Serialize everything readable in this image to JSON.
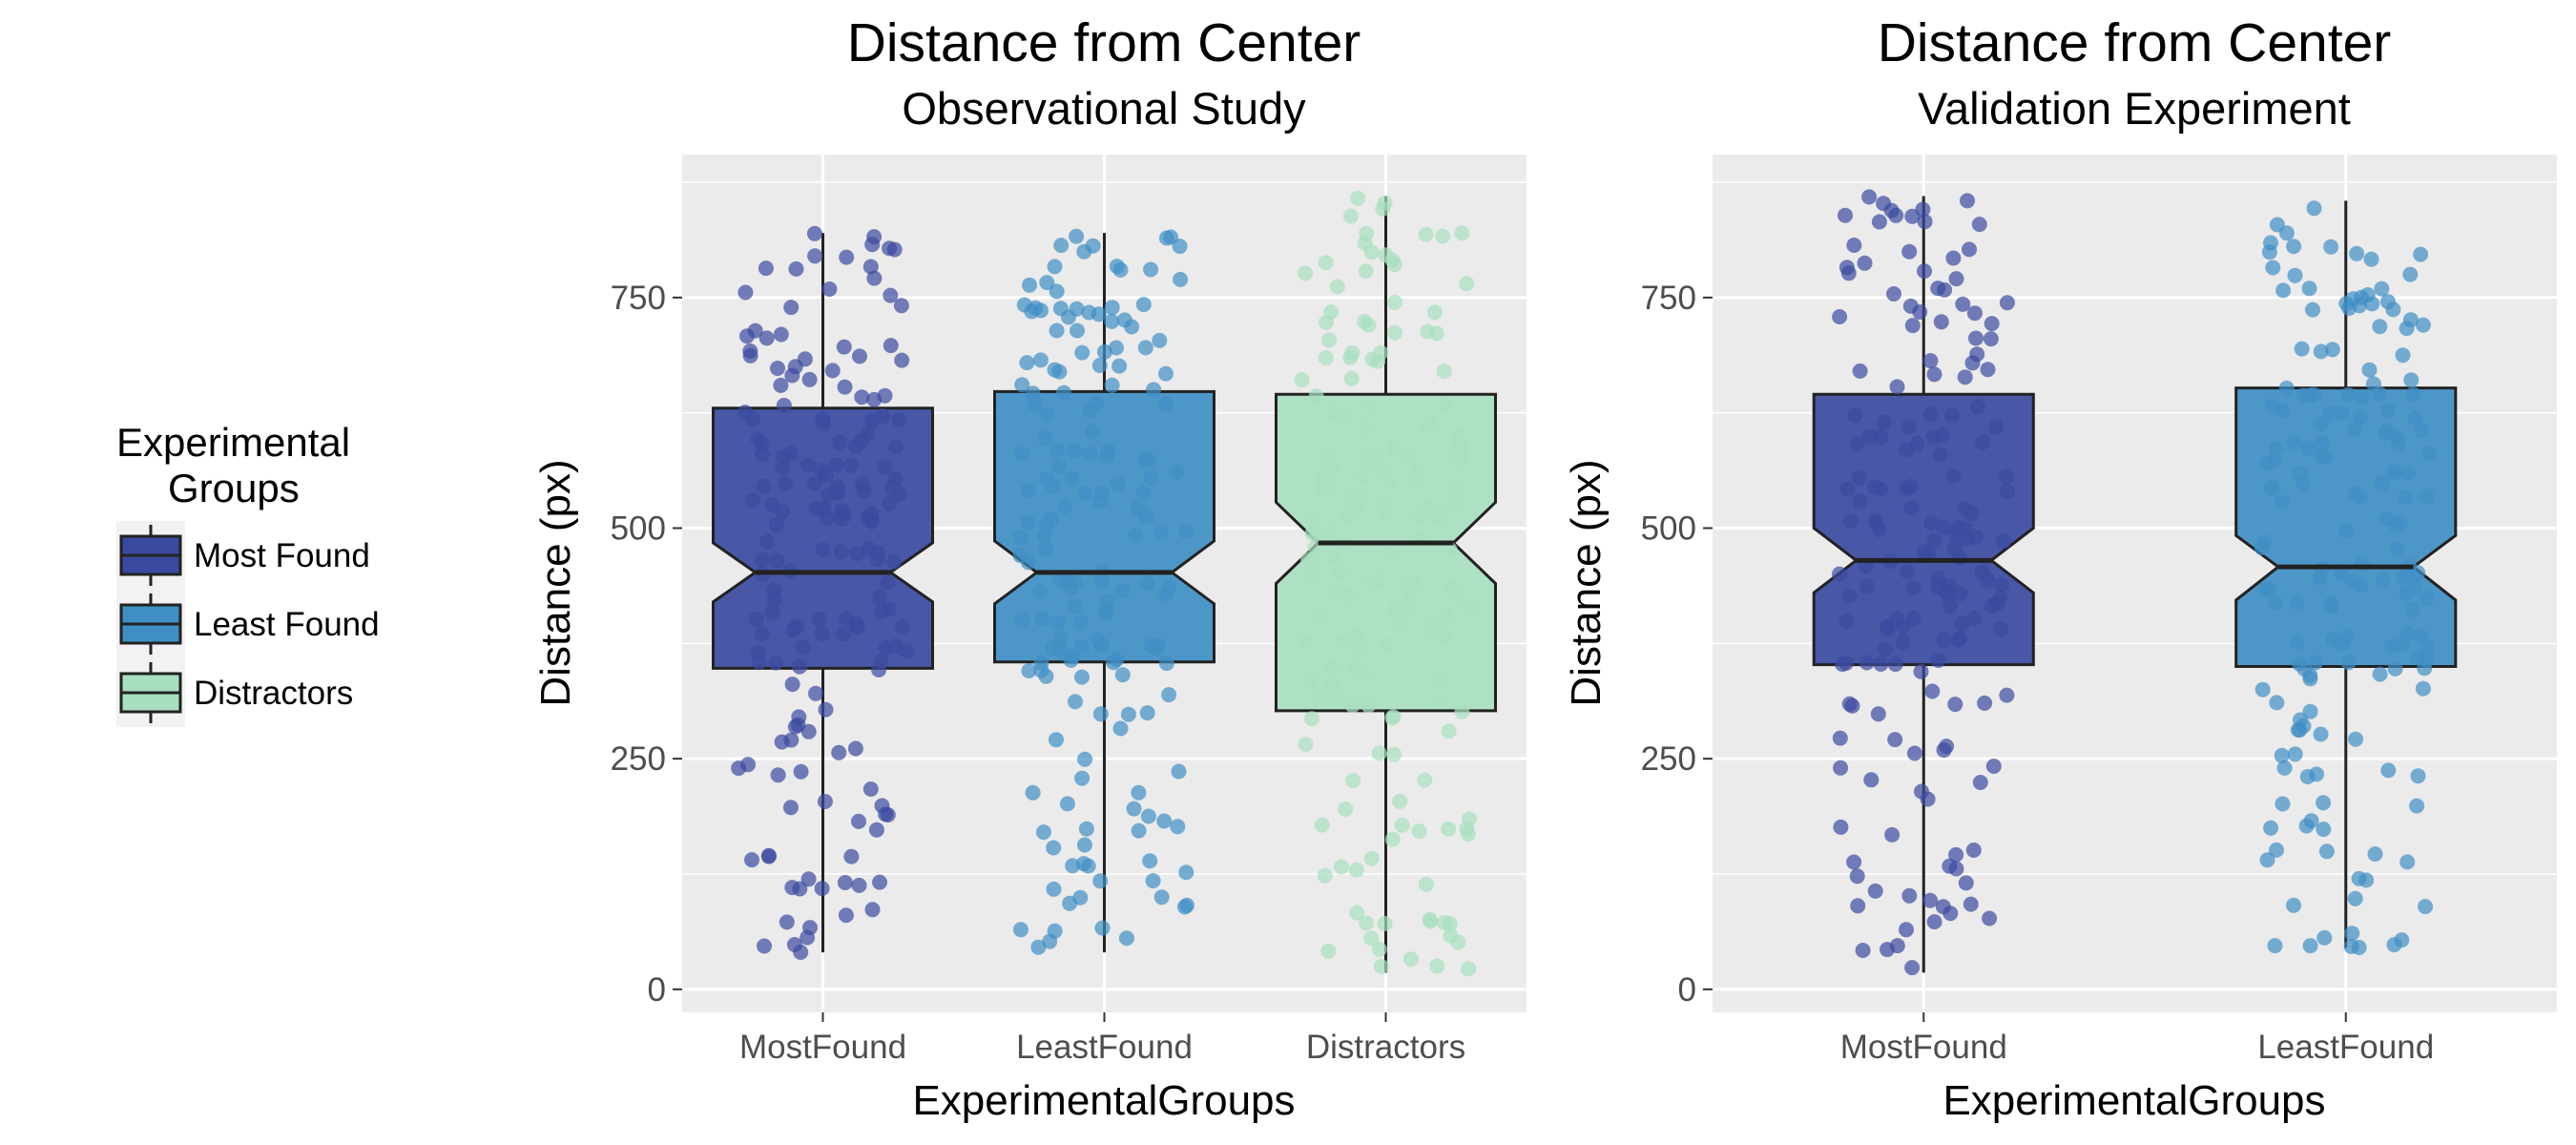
{
  "legend": {
    "title_line1": "Experimental",
    "title_line2": "Groups",
    "entries": [
      {
        "label": "Most Found",
        "color": "#3a4aa0"
      },
      {
        "label": "Least Found",
        "color": "#3f8fc4"
      },
      {
        "label": "Distractors",
        "color": "#a8dfbf"
      }
    ]
  },
  "chart_data": [
    {
      "type": "box",
      "title": "Distance from Center",
      "subtitle": "Observational Study",
      "xlabel": "ExperimentalGroups",
      "ylabel": "Distance (px)",
      "ylim": [
        -25,
        905
      ],
      "yticks": [
        0,
        250,
        500,
        750
      ],
      "grid": true,
      "notched": true,
      "categories": [
        "MostFound",
        "LeastFound",
        "Distractors"
      ],
      "boxes": [
        {
          "category": "MostFound",
          "min": 40,
          "q1": 348,
          "median": 452,
          "q3": 630,
          "max": 820,
          "notch_low": 420,
          "notch_high": 484,
          "color": "#3a4aa0",
          "point_color": "#3a4aa0"
        },
        {
          "category": "LeastFound",
          "min": 40,
          "q1": 355,
          "median": 452,
          "q3": 648,
          "max": 820,
          "notch_low": 418,
          "notch_high": 486,
          "color": "#3f8fc4",
          "point_color": "#3f8fc4"
        },
        {
          "category": "Distractors",
          "min": 18,
          "q1": 302,
          "median": 484,
          "q3": 645,
          "max": 860,
          "notch_low": 440,
          "notch_high": 528,
          "color": "#a8dfbf",
          "point_color": "#a8dfbf"
        }
      ]
    },
    {
      "type": "box",
      "title": "Distance from Center",
      "subtitle": "Validation Experiment",
      "xlabel": "ExperimentalGroups",
      "ylabel": "Distance (px)",
      "ylim": [
        -25,
        905
      ],
      "yticks": [
        0,
        250,
        500,
        750
      ],
      "grid": true,
      "notched": true,
      "categories": [
        "MostFound",
        "LeastFound"
      ],
      "boxes": [
        {
          "category": "MostFound",
          "min": 18,
          "q1": 352,
          "median": 465,
          "q3": 645,
          "max": 860,
          "notch_low": 430,
          "notch_high": 500,
          "color": "#3a4aa0",
          "point_color": "#3a4aa0"
        },
        {
          "category": "LeastFound",
          "min": 45,
          "q1": 350,
          "median": 458,
          "q3": 652,
          "max": 855,
          "notch_low": 422,
          "notch_high": 492,
          "color": "#3f8fc4",
          "point_color": "#3f8fc4"
        }
      ]
    }
  ]
}
